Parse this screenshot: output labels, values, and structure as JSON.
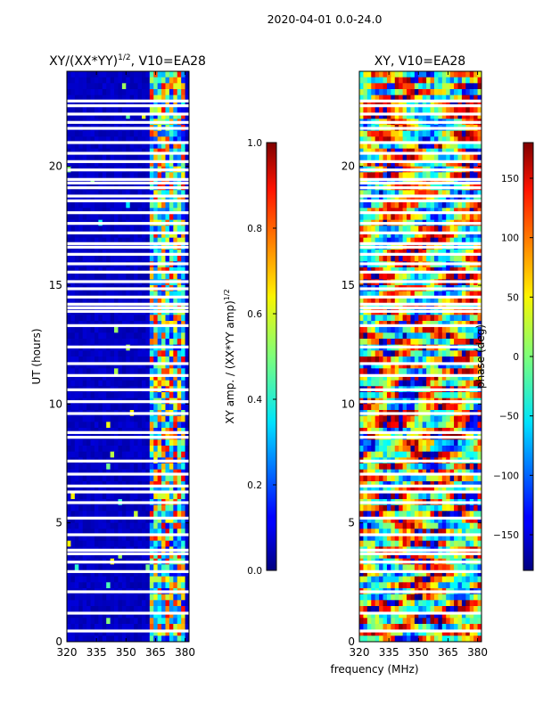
{
  "figure": {
    "suptitle": "2020-04-01 0.0-24.0",
    "xlabel_shared": "frequency (MHz)"
  },
  "chart_data": [
    {
      "type": "heatmap",
      "id": "amp",
      "title_main": "XY/(XX*YY)",
      "title_exp": "1/2",
      "title_suffix": ", V10=EA28",
      "xlabel": "",
      "ylabel": "UT (hours)",
      "xlim": [
        320,
        382
      ],
      "ylim": [
        0,
        24
      ],
      "xticks": [
        320,
        335,
        350,
        365,
        380
      ],
      "yticks": [
        0,
        5,
        10,
        15,
        20
      ],
      "colormap": "jet",
      "colorbar": {
        "label_main": "XY amp. / (XX*YY amp)",
        "label_exp": "1/2",
        "range": [
          0.0,
          1.0
        ],
        "ticks": [
          0.0,
          0.2,
          0.4,
          0.6,
          0.8,
          1.0
        ],
        "tick_labels": [
          "0.0",
          "0.2",
          "0.4",
          "0.6",
          "0.8",
          "1.0"
        ]
      },
      "description_of_values": "Mostly ~0.05 (dark blue) for 320-362 MHz; patchy 0.3-0.9 band between ~362 and ~380 MHz"
    },
    {
      "type": "heatmap",
      "id": "phase",
      "title_main": "XY, V10=EA28",
      "xlabel": "frequency (MHz)",
      "ylabel": "",
      "xlim": [
        320,
        382
      ],
      "ylim": [
        0,
        24
      ],
      "xticks": [
        320,
        335,
        350,
        365,
        380
      ],
      "yticks": [
        0,
        5,
        10,
        15,
        20
      ],
      "colormap": "jet",
      "colorbar": {
        "label_main": "phase (deg)",
        "range": [
          -180,
          180
        ],
        "ticks": [
          -150,
          -100,
          -50,
          0,
          50,
          100,
          150
        ],
        "tick_labels": [
          "−150",
          "−100",
          "−50",
          "0",
          "50",
          "100",
          "150"
        ]
      },
      "description_of_values": "Phase spanning full -180..180 range, noisy horizontal streaks"
    }
  ],
  "flagged_hours": [
    0.45,
    1.2,
    2.1,
    2.95,
    3.35,
    3.7,
    3.85,
    4.5,
    5.2,
    5.85,
    6.3,
    6.55,
    7.05,
    7.6,
    8.6,
    8.8,
    9.6,
    10.1,
    10.6,
    11.2,
    11.7,
    12.4,
    13.3,
    13.9,
    14.05,
    14.2,
    14.5,
    14.85,
    15.15,
    15.55,
    15.9,
    16.3,
    16.6,
    16.75,
    17.2,
    17.6,
    18.05,
    18.55,
    18.75,
    19.1,
    19.3,
    19.45,
    19.85,
    20.2,
    20.55,
    21.0,
    21.6,
    21.85,
    22.2,
    22.55,
    22.75
  ]
}
